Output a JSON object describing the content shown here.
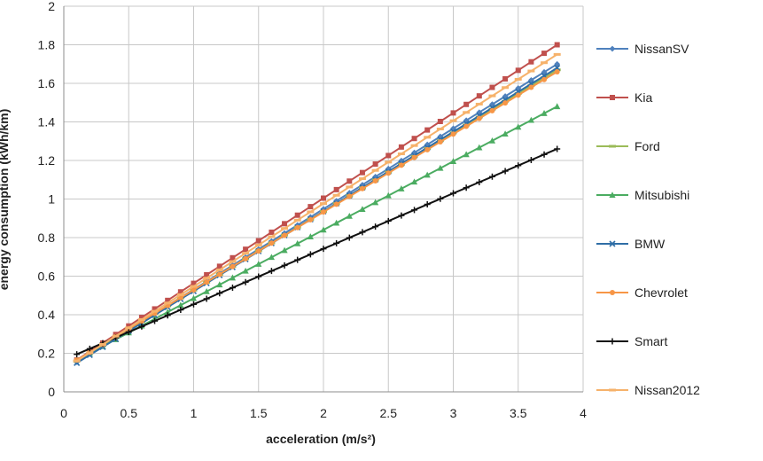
{
  "chart_data": {
    "type": "line",
    "title": "",
    "xlabel": "acceleration (m/s²)",
    "ylabel": "energy consumption (kWh/km)",
    "xlim": [
      0,
      4
    ],
    "ylim": [
      0,
      2
    ],
    "x_ticks": [
      "0",
      "0.5",
      "1",
      "1.5",
      "2",
      "2.5",
      "3",
      "3.5",
      "4"
    ],
    "y_ticks": [
      "0",
      "0.2",
      "0.4",
      "0.6",
      "0.8",
      "1",
      "1.2",
      "1.4",
      "1.6",
      "1.8",
      "2"
    ],
    "grid": true,
    "legend_position": "right",
    "x_range": {
      "start": 0.1,
      "end": 3.8,
      "step": 0.1
    },
    "series": [
      {
        "name": "NissanSV",
        "color": "#4f81bd",
        "marker": "diamond",
        "y_start": 0.155,
        "y_end": 1.7
      },
      {
        "name": "Kia",
        "color": "#c0504d",
        "marker": "square",
        "y_start": 0.165,
        "y_end": 1.8
      },
      {
        "name": "Ford",
        "color": "#9bbb59",
        "marker": "dash",
        "y_start": 0.16,
        "y_end": 1.67
      },
      {
        "name": "Mitsubishi",
        "color": "#4bac61",
        "marker": "triangle",
        "y_start": 0.165,
        "y_end": 1.48
      },
      {
        "name": "BMW",
        "color": "#2f6ea6",
        "marker": "x",
        "y_start": 0.15,
        "y_end": 1.68
      },
      {
        "name": "Chevrolet",
        "color": "#f79646",
        "marker": "circle",
        "y_start": 0.165,
        "y_end": 1.66
      },
      {
        "name": "Smart",
        "color": "#111111",
        "marker": "plus",
        "y_start": 0.195,
        "y_end": 1.26
      },
      {
        "name": "Nissan2012",
        "color": "#f6b26b",
        "marker": "dash",
        "y_start": 0.16,
        "y_end": 1.75
      }
    ]
  }
}
